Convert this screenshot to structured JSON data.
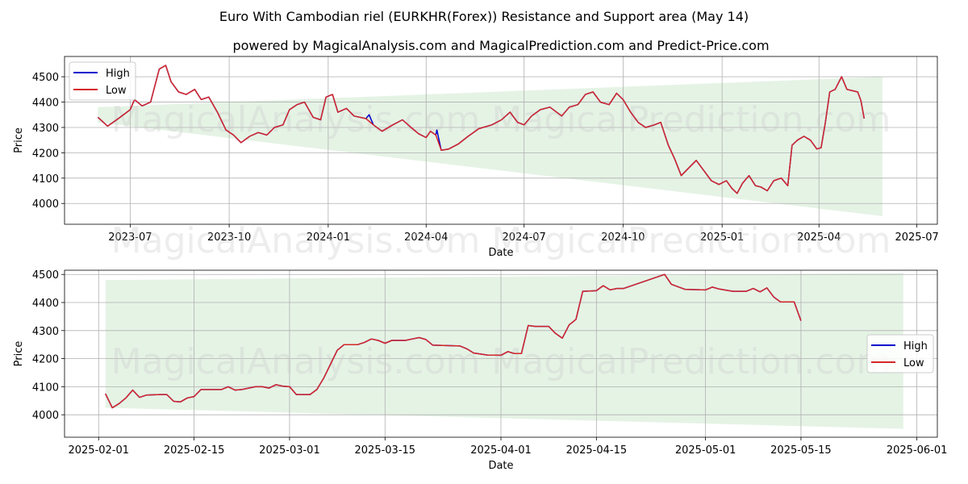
{
  "chart_data": [
    {
      "type": "line",
      "title": "Euro With Cambodian riel (EURKHR(Forex)) Resistance and Support area (May 14)",
      "subtitle": "powered by MagicalAnalysis.com and MagicalPrediction.com and Predict-Price.com",
      "xlabel": "Date",
      "ylabel": "Price",
      "x_ticks": [
        "2023-07",
        "2023-10",
        "2024-01",
        "2024-04",
        "2024-07",
        "2024-10",
        "2025-01",
        "2025-04",
        "2025-07"
      ],
      "y_ticks": [
        4000,
        4100,
        4200,
        4300,
        4400,
        4500
      ],
      "ylim": [
        3918,
        4580
      ],
      "grid": true,
      "legend": "top-left",
      "watermark": "MagicalAnalysis.com   MagicalPrediction.com",
      "band": {
        "start": "2023-06-01",
        "end": "2025-05-30",
        "upper": [
          4380,
          4500
        ],
        "lower": [
          4320,
          3950
        ]
      },
      "series": [
        {
          "name": "High",
          "color": "#0000cc"
        },
        {
          "name": "Low",
          "color": "#d62728"
        }
      ],
      "points": [
        [
          "2023-06-01",
          4340
        ],
        [
          "2023-06-10",
          4305
        ],
        [
          "2023-06-20",
          4335
        ],
        [
          "2023-07-01",
          4370
        ],
        [
          "2023-07-05",
          4410
        ],
        [
          "2023-07-12",
          4385
        ],
        [
          "2023-07-20",
          4400
        ],
        [
          "2023-07-28",
          4530
        ],
        [
          "2023-08-03",
          4545
        ],
        [
          "2023-08-08",
          4480
        ],
        [
          "2023-08-15",
          4440
        ],
        [
          "2023-08-22",
          4430
        ],
        [
          "2023-08-30",
          4450
        ],
        [
          "2023-09-05",
          4410
        ],
        [
          "2023-09-12",
          4420
        ],
        [
          "2023-09-20",
          4360
        ],
        [
          "2023-09-28",
          4290
        ],
        [
          "2023-10-05",
          4270
        ],
        [
          "2023-10-12",
          4240
        ],
        [
          "2023-10-20",
          4265
        ],
        [
          "2023-10-28",
          4280
        ],
        [
          "2023-11-05",
          4270
        ],
        [
          "2023-11-12",
          4300
        ],
        [
          "2023-11-20",
          4310
        ],
        [
          "2023-11-26",
          4370
        ],
        [
          "2023-12-03",
          4390
        ],
        [
          "2023-12-10",
          4400
        ],
        [
          "2023-12-18",
          4340
        ],
        [
          "2023-12-25",
          4330
        ],
        [
          "2023-12-30",
          4420
        ],
        [
          "2024-01-05",
          4430
        ],
        [
          "2024-01-10",
          4360
        ],
        [
          "2024-01-18",
          4375
        ],
        [
          "2024-01-25",
          4345
        ],
        [
          "2024-02-05",
          4335
        ],
        [
          "2024-02-12",
          4310
        ],
        [
          "2024-02-20",
          4285
        ],
        [
          "2024-03-01",
          4310
        ],
        [
          "2024-03-10",
          4330
        ],
        [
          "2024-03-18",
          4300
        ],
        [
          "2024-03-25",
          4275
        ],
        [
          "2024-04-01",
          4260
        ],
        [
          "2024-04-05",
          4285
        ],
        [
          "2024-04-10",
          4270
        ],
        [
          "2024-04-15",
          4210
        ],
        [
          "2024-04-22",
          4215
        ],
        [
          "2024-05-01",
          4235
        ],
        [
          "2024-05-10",
          4265
        ],
        [
          "2024-05-20",
          4295
        ],
        [
          "2024-06-01",
          4310
        ],
        [
          "2024-06-10",
          4330
        ],
        [
          "2024-06-18",
          4360
        ],
        [
          "2024-06-25",
          4320
        ],
        [
          "2024-07-01",
          4310
        ],
        [
          "2024-07-08",
          4345
        ],
        [
          "2024-07-16",
          4370
        ],
        [
          "2024-07-25",
          4380
        ],
        [
          "2024-08-05",
          4345
        ],
        [
          "2024-08-12",
          4380
        ],
        [
          "2024-08-20",
          4390
        ],
        [
          "2024-08-27",
          4430
        ],
        [
          "2024-09-03",
          4440
        ],
        [
          "2024-09-10",
          4400
        ],
        [
          "2024-09-18",
          4390
        ],
        [
          "2024-09-25",
          4435
        ],
        [
          "2024-10-01",
          4410
        ],
        [
          "2024-10-08",
          4360
        ],
        [
          "2024-10-15",
          4320
        ],
        [
          "2024-10-22",
          4300
        ],
        [
          "2024-10-30",
          4310
        ],
        [
          "2024-11-05",
          4320
        ],
        [
          "2024-11-12",
          4230
        ],
        [
          "2024-11-18",
          4175
        ],
        [
          "2024-11-24",
          4110
        ],
        [
          "2024-12-01",
          4140
        ],
        [
          "2024-12-08",
          4170
        ],
        [
          "2024-12-15",
          4130
        ],
        [
          "2024-12-22",
          4090
        ],
        [
          "2024-12-29",
          4075
        ],
        [
          "2025-01-05",
          4090
        ],
        [
          "2025-01-10",
          4060
        ],
        [
          "2025-01-15",
          4040
        ],
        [
          "2025-01-20",
          4080
        ],
        [
          "2025-01-26",
          4110
        ],
        [
          "2025-02-01",
          4070
        ],
        [
          "2025-02-06",
          4065
        ],
        [
          "2025-02-12",
          4050
        ],
        [
          "2025-02-18",
          4090
        ],
        [
          "2025-02-25",
          4100
        ],
        [
          "2025-03-03",
          4070
        ],
        [
          "2025-03-07",
          4230
        ],
        [
          "2025-03-12",
          4250
        ],
        [
          "2025-03-18",
          4265
        ],
        [
          "2025-03-24",
          4250
        ],
        [
          "2025-03-30",
          4215
        ],
        [
          "2025-04-03",
          4220
        ],
        [
          "2025-04-07",
          4320
        ],
        [
          "2025-04-11",
          4440
        ],
        [
          "2025-04-16",
          4450
        ],
        [
          "2025-04-22",
          4500
        ],
        [
          "2025-04-27",
          4450
        ],
        [
          "2025-05-02",
          4445
        ],
        [
          "2025-05-07",
          4440
        ],
        [
          "2025-05-10",
          4405
        ],
        [
          "2025-05-13",
          4335
        ]
      ],
      "high_spikes": [
        [
          "2024-02-08",
          4350
        ],
        [
          "2024-04-11",
          4290
        ]
      ]
    },
    {
      "type": "line",
      "xlabel": "Date",
      "ylabel": "Price",
      "x_ticks": [
        "2025-02-01",
        "2025-02-15",
        "2025-03-01",
        "2025-03-15",
        "2025-04-01",
        "2025-04-15",
        "2025-05-01",
        "2025-05-15",
        "2025-06-01"
      ],
      "y_ticks": [
        4000,
        4100,
        4200,
        4300,
        4400,
        4500
      ],
      "ylim": [
        3920,
        4515
      ],
      "grid": true,
      "legend": "center-right",
      "watermark": "MagicalAnalysis.com   MagicalPrediction.com",
      "band": {
        "start": "2025-02-02",
        "end": "2025-05-30",
        "upper": [
          4480,
          4505
        ],
        "lower": [
          4025,
          3950
        ]
      },
      "series": [
        {
          "name": "High",
          "color": "#0000cc"
        },
        {
          "name": "Low",
          "color": "#d62728"
        }
      ],
      "points": [
        [
          "2025-02-02",
          4075
        ],
        [
          "2025-02-03",
          4025
        ],
        [
          "2025-02-04",
          4040
        ],
        [
          "2025-02-05",
          4060
        ],
        [
          "2025-02-06",
          4088
        ],
        [
          "2025-02-07",
          4062
        ],
        [
          "2025-02-08",
          4070
        ],
        [
          "2025-02-10",
          4072
        ],
        [
          "2025-02-11",
          4072
        ],
        [
          "2025-02-12",
          4048
        ],
        [
          "2025-02-13",
          4046
        ],
        [
          "2025-02-14",
          4060
        ],
        [
          "2025-02-15",
          4065
        ],
        [
          "2025-02-16",
          4090
        ],
        [
          "2025-02-19",
          4090
        ],
        [
          "2025-02-20",
          4100
        ],
        [
          "2025-02-21",
          4088
        ],
        [
          "2025-02-22",
          4090
        ],
        [
          "2025-02-24",
          4100
        ],
        [
          "2025-02-25",
          4100
        ],
        [
          "2025-02-26",
          4095
        ],
        [
          "2025-02-27",
          4107
        ],
        [
          "2025-02-28",
          4102
        ],
        [
          "2025-03-01",
          4100
        ],
        [
          "2025-03-02",
          4072
        ],
        [
          "2025-03-04",
          4072
        ],
        [
          "2025-03-05",
          4090
        ],
        [
          "2025-03-06",
          4130
        ],
        [
          "2025-03-07",
          4180
        ],
        [
          "2025-03-08",
          4230
        ],
        [
          "2025-03-09",
          4250
        ],
        [
          "2025-03-11",
          4250
        ],
        [
          "2025-03-12",
          4258
        ],
        [
          "2025-03-13",
          4270
        ],
        [
          "2025-03-14",
          4265
        ],
        [
          "2025-03-15",
          4255
        ],
        [
          "2025-03-16",
          4265
        ],
        [
          "2025-03-18",
          4265
        ],
        [
          "2025-03-19",
          4270
        ],
        [
          "2025-03-20",
          4275
        ],
        [
          "2025-03-21",
          4268
        ],
        [
          "2025-03-22",
          4248
        ],
        [
          "2025-03-26",
          4245
        ],
        [
          "2025-03-27",
          4235
        ],
        [
          "2025-03-28",
          4220
        ],
        [
          "2025-03-30",
          4213
        ],
        [
          "2025-04-01",
          4212
        ],
        [
          "2025-04-02",
          4225
        ],
        [
          "2025-04-03",
          4218
        ],
        [
          "2025-04-04",
          4218
        ],
        [
          "2025-04-05",
          4318
        ],
        [
          "2025-04-06",
          4315
        ],
        [
          "2025-04-08",
          4315
        ],
        [
          "2025-04-09",
          4290
        ],
        [
          "2025-04-10",
          4273
        ],
        [
          "2025-04-11",
          4320
        ],
        [
          "2025-04-12",
          4340
        ],
        [
          "2025-04-13",
          4440
        ],
        [
          "2025-04-15",
          4442
        ],
        [
          "2025-04-16",
          4460
        ],
        [
          "2025-04-17",
          4445
        ],
        [
          "2025-04-18",
          4450
        ],
        [
          "2025-04-19",
          4450
        ],
        [
          "2025-04-25",
          4500
        ],
        [
          "2025-04-26",
          4465
        ],
        [
          "2025-04-28",
          4447
        ],
        [
          "2025-05-01",
          4445
        ],
        [
          "2025-05-02",
          4455
        ],
        [
          "2025-05-03",
          4448
        ],
        [
          "2025-05-05",
          4440
        ],
        [
          "2025-05-07",
          4440
        ],
        [
          "2025-05-08",
          4450
        ],
        [
          "2025-05-09",
          4438
        ],
        [
          "2025-05-10",
          4452
        ],
        [
          "2025-05-11",
          4420
        ],
        [
          "2025-05-12",
          4402
        ],
        [
          "2025-05-14",
          4402
        ],
        [
          "2025-05-15",
          4335
        ]
      ]
    }
  ]
}
